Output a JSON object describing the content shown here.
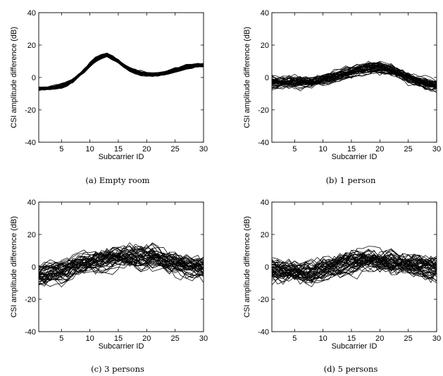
{
  "chart_data": [
    {
      "type": "line",
      "caption": "(a) Empty room",
      "xlabel": "Subcarrier ID",
      "ylabel": "CSI amplitude difference (dB)",
      "xlim": [
        1,
        30
      ],
      "ylim": [
        -40,
        40
      ],
      "xticks": [
        5,
        10,
        15,
        20,
        25,
        30
      ],
      "yticks": [
        -40,
        -20,
        0,
        20,
        40
      ],
      "grid": false,
      "x": [
        1,
        2,
        3,
        4,
        5,
        6,
        7,
        8,
        9,
        10,
        11,
        12,
        13,
        14,
        15,
        16,
        17,
        18,
        19,
        20,
        21,
        22,
        23,
        24,
        25,
        26,
        27,
        28,
        29,
        30
      ],
      "mean_curve": [
        -7,
        -7,
        -6.5,
        -6,
        -5.5,
        -4,
        -2,
        1,
        4,
        8,
        11,
        13,
        14,
        12,
        10,
        7,
        5,
        3.5,
        2.5,
        1.8,
        1.5,
        1.8,
        2.5,
        3.5,
        4.5,
        5.5,
        6.5,
        7,
        7.5,
        7.5
      ],
      "num_traces": 45,
      "spread_db": 1.2
    },
    {
      "type": "line",
      "caption": "(b) 1 person",
      "xlabel": "Subcarrier ID",
      "ylabel": "CSI amplitude difference (dB)",
      "xlim": [
        1,
        30
      ],
      "ylim": [
        -40,
        40
      ],
      "xticks": [
        5,
        10,
        15,
        20,
        25,
        30
      ],
      "yticks": [
        -40,
        -20,
        0,
        20,
        40
      ],
      "grid": false,
      "x": [
        1,
        2,
        3,
        4,
        5,
        6,
        7,
        8,
        9,
        10,
        11,
        12,
        13,
        14,
        15,
        16,
        17,
        18,
        19,
        20,
        21,
        22,
        23,
        24,
        25,
        26,
        27,
        28,
        29,
        30
      ],
      "mean_curve": [
        -3,
        -3,
        -3,
        -3,
        -3,
        -3,
        -3,
        -2.5,
        -2,
        -1.5,
        -0.5,
        0.5,
        1.5,
        2.5,
        3.5,
        4.5,
        5,
        5.5,
        6,
        6,
        5.5,
        4.5,
        3,
        1.5,
        0,
        -1.5,
        -2.5,
        -3.5,
        -4.5,
        -5
      ],
      "num_traces": 45,
      "spread_db": 3.5
    },
    {
      "type": "line",
      "caption": "(c) 3 persons",
      "xlabel": "Subcarrier ID",
      "ylabel": "CSI amplitude difference (dB)",
      "xlim": [
        1,
        30
      ],
      "ylim": [
        -40,
        40
      ],
      "xticks": [
        5,
        10,
        15,
        20,
        25,
        30
      ],
      "yticks": [
        -40,
        -20,
        0,
        20,
        40
      ],
      "grid": false,
      "x": [
        1,
        2,
        3,
        4,
        5,
        6,
        7,
        8,
        9,
        10,
        11,
        12,
        13,
        14,
        15,
        16,
        17,
        18,
        19,
        20,
        21,
        22,
        23,
        24,
        25,
        26,
        27,
        28,
        29,
        30
      ],
      "mean_curve": [
        -5,
        -4.5,
        -4,
        -3.5,
        -3,
        -2,
        -1,
        0,
        1,
        2,
        3,
        4,
        5,
        5.5,
        6,
        6.5,
        6.5,
        6.5,
        6,
        5.5,
        5,
        4,
        3,
        2,
        1.5,
        1,
        0.5,
        0,
        0,
        0
      ],
      "num_traces": 45,
      "spread_db": 7
    },
    {
      "type": "line",
      "caption": "(d) 5 persons",
      "xlabel": "Subcarrier ID",
      "ylabel": "CSI amplitude difference (dB)",
      "xlim": [
        1,
        30
      ],
      "ylim": [
        -40,
        40
      ],
      "xticks": [
        5,
        10,
        15,
        20,
        25,
        30
      ],
      "yticks": [
        -40,
        -20,
        0,
        20,
        40
      ],
      "grid": false,
      "x": [
        1,
        2,
        3,
        4,
        5,
        6,
        7,
        8,
        9,
        10,
        11,
        12,
        13,
        14,
        15,
        16,
        17,
        18,
        19,
        20,
        21,
        22,
        23,
        24,
        25,
        26,
        27,
        28,
        29,
        30
      ],
      "mean_curve": [
        -2,
        -2,
        -2.5,
        -3,
        -3.5,
        -4,
        -4,
        -3.5,
        -3,
        -2,
        -1,
        0,
        1,
        2,
        3,
        3.5,
        4,
        4,
        4,
        3.5,
        3,
        2.5,
        2,
        1.5,
        1,
        0.5,
        0,
        -0.5,
        -1,
        -1
      ],
      "num_traces": 45,
      "spread_db": 7
    }
  ]
}
